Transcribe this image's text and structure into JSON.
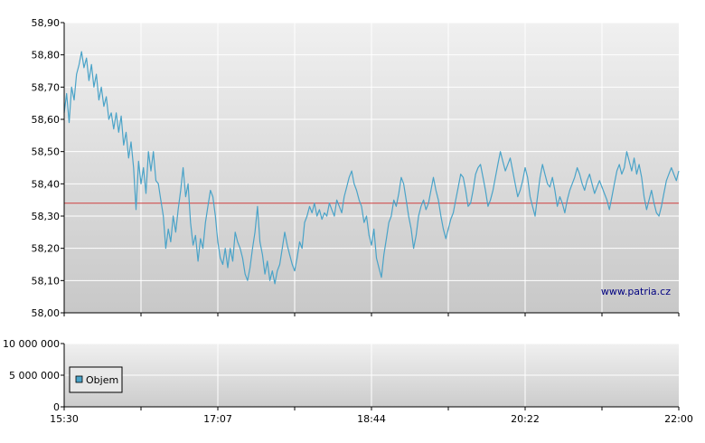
{
  "watermark": "www.patria.cz",
  "colors": {
    "line": "#4aa3c8",
    "reference_line": "#d04040",
    "grid": "#ffffff",
    "axis": "#000000",
    "legend_swatch": "#4aa3c8"
  },
  "chart_data": [
    {
      "type": "line",
      "title": "",
      "xlabel": "",
      "ylabel": "",
      "ylim": [
        58.0,
        58.9
      ],
      "y_ticks": [
        "58,00",
        "58,10",
        "58,20",
        "58,30",
        "58,40",
        "58,50",
        "58,60",
        "58,70",
        "58,80",
        "58,90"
      ],
      "grid": true,
      "reference_line": 58.34,
      "series": [
        {
          "x_start": "15:30",
          "x_end": "22:00",
          "values": [
            58.62,
            58.68,
            58.59,
            58.7,
            58.66,
            58.74,
            58.77,
            58.81,
            58.76,
            58.79,
            58.72,
            58.77,
            58.7,
            58.74,
            58.66,
            58.7,
            58.64,
            58.67,
            58.6,
            58.62,
            58.57,
            58.62,
            58.56,
            58.61,
            58.52,
            58.56,
            58.48,
            58.53,
            58.45,
            58.32,
            58.47,
            58.4,
            58.45,
            58.37,
            58.5,
            58.44,
            58.5,
            58.41,
            58.4,
            58.35,
            58.3,
            58.2,
            58.26,
            58.22,
            58.3,
            58.25,
            58.32,
            58.38,
            58.45,
            58.36,
            58.4,
            58.28,
            58.21,
            58.24,
            58.16,
            58.23,
            58.2,
            58.28,
            58.33,
            58.38,
            58.36,
            58.3,
            58.22,
            58.17,
            58.15,
            58.2,
            58.14,
            58.2,
            58.16,
            58.25,
            58.22,
            58.2,
            58.17,
            58.12,
            58.1,
            58.14,
            58.2,
            58.25,
            58.33,
            58.22,
            58.18,
            58.12,
            58.16,
            58.1,
            58.13,
            58.09,
            58.13,
            58.15,
            58.2,
            58.25,
            58.21,
            58.18,
            58.15,
            58.13,
            58.17,
            58.22,
            58.2,
            58.28,
            58.3,
            58.33,
            58.31,
            58.34,
            58.3,
            58.32,
            58.29,
            58.31,
            58.3,
            58.34,
            58.32,
            58.3,
            58.35,
            58.33,
            58.31,
            58.36,
            58.39,
            58.42,
            58.44,
            58.4,
            58.38,
            58.35,
            58.33,
            58.28,
            58.3,
            58.24,
            58.21,
            58.26,
            58.17,
            58.14,
            58.11,
            58.18,
            58.23,
            58.28,
            58.3,
            58.35,
            58.33,
            58.37,
            58.42,
            58.4,
            58.35,
            58.3,
            58.26,
            58.2,
            58.24,
            58.3,
            58.33,
            58.35,
            58.32,
            58.34,
            58.38,
            58.42,
            58.38,
            58.35,
            58.3,
            58.26,
            58.23,
            58.26,
            58.29,
            58.31,
            58.35,
            58.39,
            58.43,
            58.42,
            58.38,
            58.33,
            58.34,
            58.38,
            58.43,
            58.45,
            58.46,
            58.42,
            58.38,
            58.33,
            58.35,
            58.38,
            58.42,
            58.46,
            58.5,
            58.47,
            58.44,
            58.46,
            58.48,
            58.44,
            58.4,
            58.36,
            58.38,
            58.41,
            58.45,
            58.42,
            58.36,
            58.33,
            58.3,
            58.36,
            58.42,
            58.46,
            58.43,
            58.4,
            58.39,
            58.42,
            58.38,
            58.33,
            58.36,
            58.34,
            58.31,
            58.35,
            58.38,
            58.4,
            58.42,
            58.45,
            58.43,
            58.4,
            58.38,
            58.41,
            58.43,
            58.4,
            58.37,
            58.39,
            58.41,
            58.39,
            58.37,
            58.35,
            58.32,
            58.36,
            58.4,
            58.44,
            58.46,
            58.43,
            58.45,
            58.5,
            58.47,
            58.44,
            58.48,
            58.43,
            58.46,
            58.42,
            58.36,
            58.32,
            58.35,
            58.38,
            58.34,
            58.31,
            58.3,
            58.33,
            58.37,
            58.41,
            58.43,
            58.45,
            58.43,
            58.41,
            58.44
          ]
        }
      ],
      "x_ticks": [
        "15:30",
        "17:07",
        "18:44",
        "20:22",
        "22:00"
      ]
    },
    {
      "type": "bar",
      "title": "",
      "ylim": [
        0,
        10000000
      ],
      "y_ticks": [
        "0",
        "5 000 000",
        "10 000 000"
      ],
      "legend": [
        "Objem"
      ],
      "legend_position": "left",
      "values": []
    }
  ]
}
